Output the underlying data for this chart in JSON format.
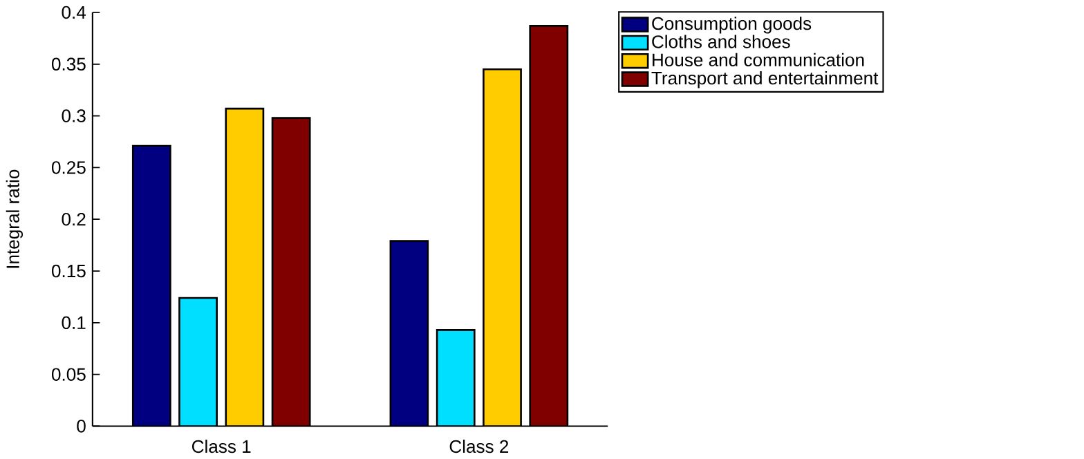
{
  "chart_data": {
    "type": "bar",
    "ylabel": "Integral ratio",
    "categories": [
      "Class 1",
      "Class 2"
    ],
    "series": [
      {
        "name": "Consumption goods",
        "color": "#000080",
        "values": [
          0.271,
          0.179
        ]
      },
      {
        "name": "Cloths and shoes",
        "color": "#00dfff",
        "values": [
          0.124,
          0.093
        ]
      },
      {
        "name": "House and communication",
        "color": "#ffcc00",
        "values": [
          0.307,
          0.345
        ]
      },
      {
        "name": "Transport and entertainment",
        "color": "#800000",
        "values": [
          0.298,
          0.387
        ]
      }
    ],
    "ylim": [
      0,
      0.4
    ],
    "yticks": [
      0,
      0.05,
      0.1,
      0.15,
      0.2,
      0.25,
      0.3,
      0.35,
      0.4
    ],
    "grid": false,
    "legend": "top right"
  }
}
